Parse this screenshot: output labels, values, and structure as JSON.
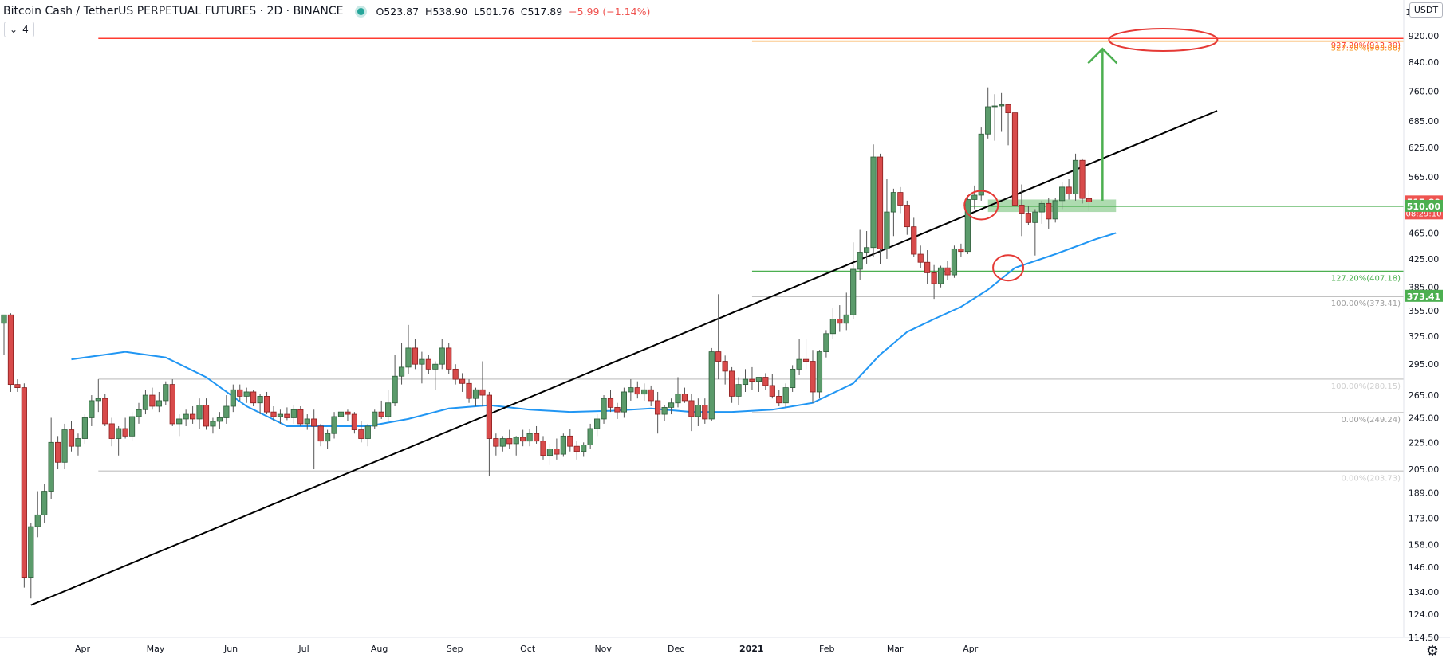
{
  "header": {
    "symbol": "Bitcoin Cash / TetherUS PERPETUAL FUTURES · 2D · BINANCE",
    "open": "O523.87",
    "high": "H538.90",
    "low": "L501.76",
    "close": "C517.89",
    "change": "−5.99 (−1.14%)",
    "ma_period": "4"
  },
  "currency": "USDT",
  "colors": {
    "up": "#26a69a",
    "up_fill": "#5b9b6b",
    "down": "#ef5350",
    "down_fill": "#d84b4b",
    "ma": "#2196f3",
    "trendline": "#000000",
    "target_arrow": "#4caf50",
    "fib_red": "#ff3b30",
    "fib_orange": "#f7931a",
    "fib_green": "#4caf50",
    "fib_gray": "#9e9e9e"
  },
  "chart_data": {
    "type": "candlestick",
    "title": "Bitcoin Cash / TetherUS PERPETUAL FUTURES · 2D · BINANCE",
    "timeframe": "2D",
    "ylim": [
      114.5,
      1000
    ],
    "y_scale": "log",
    "y_ticks": [
      "1000.00",
      "920.00",
      "840.00",
      "760.00",
      "685.00",
      "625.00",
      "565.00",
      "510.00",
      "465.00",
      "425.00",
      "385.00",
      "355.00",
      "325.00",
      "295.00",
      "265.00",
      "245.00",
      "225.00",
      "205.00",
      "189.00",
      "173.00",
      "158.00",
      "146.00",
      "134.00",
      "124.00",
      "114.50"
    ],
    "x_ticks": [
      {
        "label": "Apr",
        "day": 30
      },
      {
        "label": "May",
        "day": 60
      },
      {
        "label": "Jun",
        "day": 91
      },
      {
        "label": "Jul",
        "day": 121
      },
      {
        "label": "Aug",
        "day": 152
      },
      {
        "label": "Sep",
        "day": 183
      },
      {
        "label": "Oct",
        "day": 213
      },
      {
        "label": "Nov",
        "day": 244
      },
      {
        "label": "Dec",
        "day": 274
      },
      {
        "label": "2021",
        "day": 305
      },
      {
        "label": "Feb",
        "day": 336
      },
      {
        "label": "Mar",
        "day": 364
      },
      {
        "label": "Apr",
        "day": 395
      }
    ],
    "candles": [
      {
        "o": 340,
        "h": 350,
        "l": 305,
        "c": 350
      },
      {
        "o": 350,
        "h": 352,
        "l": 268,
        "c": 275
      },
      {
        "o": 275,
        "h": 280,
        "l": 268,
        "c": 272
      },
      {
        "o": 272,
        "h": 276,
        "l": 136,
        "c": 141
      },
      {
        "o": 141,
        "h": 170,
        "l": 131,
        "c": 168
      },
      {
        "o": 168,
        "h": 190,
        "l": 162,
        "c": 175
      },
      {
        "o": 175,
        "h": 195,
        "l": 170,
        "c": 190
      },
      {
        "o": 190,
        "h": 245,
        "l": 185,
        "c": 225
      },
      {
        "o": 225,
        "h": 230,
        "l": 205,
        "c": 210
      },
      {
        "o": 210,
        "h": 240,
        "l": 205,
        "c": 235
      },
      {
        "o": 235,
        "h": 242,
        "l": 218,
        "c": 222
      },
      {
        "o": 222,
        "h": 232,
        "l": 215,
        "c": 228
      },
      {
        "o": 228,
        "h": 248,
        "l": 224,
        "c": 245
      },
      {
        "o": 245,
        "h": 265,
        "l": 238,
        "c": 260
      },
      {
        "o": 260,
        "h": 280,
        "l": 250,
        "c": 262
      },
      {
        "o": 262,
        "h": 266,
        "l": 238,
        "c": 240
      },
      {
        "o": 240,
        "h": 245,
        "l": 222,
        "c": 228
      },
      {
        "o": 228,
        "h": 238,
        "l": 215,
        "c": 236
      },
      {
        "o": 236,
        "h": 245,
        "l": 228,
        "c": 230
      },
      {
        "o": 230,
        "h": 250,
        "l": 226,
        "c": 246
      },
      {
        "o": 246,
        "h": 258,
        "l": 240,
        "c": 252
      },
      {
        "o": 252,
        "h": 270,
        "l": 248,
        "c": 265
      },
      {
        "o": 265,
        "h": 272,
        "l": 252,
        "c": 255
      },
      {
        "o": 255,
        "h": 268,
        "l": 250,
        "c": 260
      },
      {
        "o": 260,
        "h": 278,
        "l": 256,
        "c": 275
      },
      {
        "o": 275,
        "h": 280,
        "l": 238,
        "c": 240
      },
      {
        "o": 240,
        "h": 248,
        "l": 230,
        "c": 244
      },
      {
        "o": 244,
        "h": 252,
        "l": 238,
        "c": 248
      },
      {
        "o": 248,
        "h": 255,
        "l": 240,
        "c": 244
      },
      {
        "o": 244,
        "h": 262,
        "l": 236,
        "c": 256
      },
      {
        "o": 256,
        "h": 262,
        "l": 235,
        "c": 238
      },
      {
        "o": 238,
        "h": 245,
        "l": 232,
        "c": 242
      },
      {
        "o": 242,
        "h": 250,
        "l": 236,
        "c": 245
      },
      {
        "o": 245,
        "h": 265,
        "l": 240,
        "c": 255
      },
      {
        "o": 255,
        "h": 275,
        "l": 250,
        "c": 270
      },
      {
        "o": 270,
        "h": 275,
        "l": 260,
        "c": 264
      },
      {
        "o": 264,
        "h": 272,
        "l": 258,
        "c": 268
      },
      {
        "o": 268,
        "h": 270,
        "l": 255,
        "c": 258
      },
      {
        "o": 258,
        "h": 266,
        "l": 248,
        "c": 264
      },
      {
        "o": 264,
        "h": 268,
        "l": 248,
        "c": 250
      },
      {
        "o": 250,
        "h": 255,
        "l": 242,
        "c": 246
      },
      {
        "o": 246,
        "h": 252,
        "l": 240,
        "c": 248
      },
      {
        "o": 248,
        "h": 254,
        "l": 243,
        "c": 245
      },
      {
        "o": 245,
        "h": 256,
        "l": 240,
        "c": 252
      },
      {
        "o": 252,
        "h": 255,
        "l": 238,
        "c": 240
      },
      {
        "o": 240,
        "h": 248,
        "l": 235,
        "c": 244
      },
      {
        "o": 244,
        "h": 252,
        "l": 205,
        "c": 238
      },
      {
        "o": 238,
        "h": 240,
        "l": 222,
        "c": 226
      },
      {
        "o": 226,
        "h": 235,
        "l": 220,
        "c": 232
      },
      {
        "o": 232,
        "h": 250,
        "l": 228,
        "c": 246
      },
      {
        "o": 246,
        "h": 255,
        "l": 240,
        "c": 250
      },
      {
        "o": 250,
        "h": 252,
        "l": 242,
        "c": 248
      },
      {
        "o": 248,
        "h": 250,
        "l": 232,
        "c": 235
      },
      {
        "o": 235,
        "h": 242,
        "l": 225,
        "c": 228
      },
      {
        "o": 228,
        "h": 240,
        "l": 222,
        "c": 238
      },
      {
        "o": 238,
        "h": 252,
        "l": 236,
        "c": 250
      },
      {
        "o": 250,
        "h": 260,
        "l": 244,
        "c": 246
      },
      {
        "o": 246,
        "h": 270,
        "l": 242,
        "c": 258
      },
      {
        "o": 258,
        "h": 305,
        "l": 255,
        "c": 283
      },
      {
        "o": 283,
        "h": 318,
        "l": 275,
        "c": 292
      },
      {
        "o": 292,
        "h": 338,
        "l": 285,
        "c": 312
      },
      {
        "o": 312,
        "h": 322,
        "l": 290,
        "c": 295
      },
      {
        "o": 295,
        "h": 308,
        "l": 276,
        "c": 300
      },
      {
        "o": 300,
        "h": 305,
        "l": 285,
        "c": 290
      },
      {
        "o": 290,
        "h": 298,
        "l": 270,
        "c": 295
      },
      {
        "o": 295,
        "h": 322,
        "l": 290,
        "c": 312
      },
      {
        "o": 312,
        "h": 318,
        "l": 285,
        "c": 290
      },
      {
        "o": 290,
        "h": 295,
        "l": 275,
        "c": 280
      },
      {
        "o": 280,
        "h": 286,
        "l": 268,
        "c": 276
      },
      {
        "o": 276,
        "h": 280,
        "l": 258,
        "c": 262
      },
      {
        "o": 262,
        "h": 272,
        "l": 255,
        "c": 270
      },
      {
        "o": 270,
        "h": 298,
        "l": 255,
        "c": 265
      },
      {
        "o": 265,
        "h": 268,
        "l": 200,
        "c": 228
      },
      {
        "o": 228,
        "h": 232,
        "l": 215,
        "c": 222
      },
      {
        "o": 222,
        "h": 230,
        "l": 218,
        "c": 228
      },
      {
        "o": 228,
        "h": 235,
        "l": 220,
        "c": 224
      },
      {
        "o": 224,
        "h": 230,
        "l": 215,
        "c": 229
      },
      {
        "o": 229,
        "h": 235,
        "l": 222,
        "c": 226
      },
      {
        "o": 226,
        "h": 236,
        "l": 222,
        "c": 232
      },
      {
        "o": 232,
        "h": 238,
        "l": 224,
        "c": 226
      },
      {
        "o": 226,
        "h": 230,
        "l": 212,
        "c": 215
      },
      {
        "o": 215,
        "h": 224,
        "l": 208,
        "c": 220
      },
      {
        "o": 220,
        "h": 228,
        "l": 212,
        "c": 216
      },
      {
        "o": 216,
        "h": 232,
        "l": 214,
        "c": 230
      },
      {
        "o": 230,
        "h": 236,
        "l": 218,
        "c": 222
      },
      {
        "o": 222,
        "h": 226,
        "l": 212,
        "c": 218
      },
      {
        "o": 218,
        "h": 225,
        "l": 214,
        "c": 223
      },
      {
        "o": 223,
        "h": 240,
        "l": 220,
        "c": 236
      },
      {
        "o": 236,
        "h": 248,
        "l": 230,
        "c": 244
      },
      {
        "o": 244,
        "h": 265,
        "l": 240,
        "c": 262
      },
      {
        "o": 262,
        "h": 270,
        "l": 250,
        "c": 254
      },
      {
        "o": 254,
        "h": 258,
        "l": 244,
        "c": 250
      },
      {
        "o": 250,
        "h": 272,
        "l": 245,
        "c": 268
      },
      {
        "o": 268,
        "h": 280,
        "l": 260,
        "c": 272
      },
      {
        "o": 272,
        "h": 278,
        "l": 262,
        "c": 266
      },
      {
        "o": 266,
        "h": 276,
        "l": 260,
        "c": 270
      },
      {
        "o": 270,
        "h": 274,
        "l": 255,
        "c": 260
      },
      {
        "o": 260,
        "h": 268,
        "l": 232,
        "c": 248
      },
      {
        "o": 248,
        "h": 256,
        "l": 242,
        "c": 254
      },
      {
        "o": 254,
        "h": 262,
        "l": 248,
        "c": 258
      },
      {
        "o": 258,
        "h": 282,
        "l": 254,
        "c": 266
      },
      {
        "o": 266,
        "h": 272,
        "l": 258,
        "c": 260
      },
      {
        "o": 260,
        "h": 266,
        "l": 234,
        "c": 246
      },
      {
        "o": 246,
        "h": 262,
        "l": 238,
        "c": 256
      },
      {
        "o": 256,
        "h": 262,
        "l": 240,
        "c": 244
      },
      {
        "o": 244,
        "h": 312,
        "l": 242,
        "c": 308
      },
      {
        "o": 308,
        "h": 376,
        "l": 280,
        "c": 298
      },
      {
        "o": 298,
        "h": 304,
        "l": 275,
        "c": 288
      },
      {
        "o": 288,
        "h": 292,
        "l": 258,
        "c": 264
      },
      {
        "o": 264,
        "h": 282,
        "l": 256,
        "c": 275
      },
      {
        "o": 275,
        "h": 290,
        "l": 268,
        "c": 280
      },
      {
        "o": 280,
        "h": 292,
        "l": 270,
        "c": 278
      },
      {
        "o": 278,
        "h": 282,
        "l": 268,
        "c": 282
      },
      {
        "o": 282,
        "h": 286,
        "l": 270,
        "c": 274
      },
      {
        "o": 274,
        "h": 285,
        "l": 262,
        "c": 264
      },
      {
        "o": 264,
        "h": 270,
        "l": 255,
        "c": 258
      },
      {
        "o": 258,
        "h": 276,
        "l": 254,
        "c": 272
      },
      {
        "o": 272,
        "h": 294,
        "l": 268,
        "c": 290
      },
      {
        "o": 290,
        "h": 322,
        "l": 284,
        "c": 300
      },
      {
        "o": 300,
        "h": 322,
        "l": 290,
        "c": 298
      },
      {
        "o": 298,
        "h": 310,
        "l": 258,
        "c": 268
      },
      {
        "o": 268,
        "h": 310,
        "l": 262,
        "c": 308
      },
      {
        "o": 308,
        "h": 332,
        "l": 302,
        "c": 328
      },
      {
        "o": 328,
        "h": 358,
        "l": 322,
        "c": 345
      },
      {
        "o": 345,
        "h": 362,
        "l": 330,
        "c": 340
      },
      {
        "o": 340,
        "h": 378,
        "l": 332,
        "c": 350
      },
      {
        "o": 350,
        "h": 450,
        "l": 345,
        "c": 410
      },
      {
        "o": 410,
        "h": 470,
        "l": 395,
        "c": 435
      },
      {
        "o": 435,
        "h": 468,
        "l": 418,
        "c": 442
      },
      {
        "o": 442,
        "h": 632,
        "l": 428,
        "c": 605
      },
      {
        "o": 605,
        "h": 612,
        "l": 418,
        "c": 440
      },
      {
        "o": 440,
        "h": 560,
        "l": 425,
        "c": 500
      },
      {
        "o": 500,
        "h": 542,
        "l": 460,
        "c": 535
      },
      {
        "o": 535,
        "h": 545,
        "l": 498,
        "c": 512
      },
      {
        "o": 512,
        "h": 520,
        "l": 462,
        "c": 475
      },
      {
        "o": 475,
        "h": 490,
        "l": 428,
        "c": 432
      },
      {
        "o": 432,
        "h": 445,
        "l": 412,
        "c": 420
      },
      {
        "o": 420,
        "h": 438,
        "l": 390,
        "c": 405
      },
      {
        "o": 405,
        "h": 416,
        "l": 370,
        "c": 390
      },
      {
        "o": 390,
        "h": 415,
        "l": 385,
        "c": 412
      },
      {
        "o": 412,
        "h": 422,
        "l": 395,
        "c": 402
      },
      {
        "o": 402,
        "h": 445,
        "l": 398,
        "c": 440
      },
      {
        "o": 440,
        "h": 448,
        "l": 428,
        "c": 436
      },
      {
        "o": 436,
        "h": 530,
        "l": 432,
        "c": 522
      },
      {
        "o": 522,
        "h": 548,
        "l": 505,
        "c": 530
      },
      {
        "o": 530,
        "h": 670,
        "l": 520,
        "c": 655
      },
      {
        "o": 655,
        "h": 770,
        "l": 645,
        "c": 720
      },
      {
        "o": 720,
        "h": 752,
        "l": 640,
        "c": 722
      },
      {
        "o": 722,
        "h": 755,
        "l": 660,
        "c": 725
      },
      {
        "o": 725,
        "h": 728,
        "l": 630,
        "c": 705
      },
      {
        "o": 705,
        "h": 710,
        "l": 425,
        "c": 512
      },
      {
        "o": 512,
        "h": 550,
        "l": 460,
        "c": 498
      },
      {
        "o": 498,
        "h": 510,
        "l": 478,
        "c": 482
      },
      {
        "o": 482,
        "h": 505,
        "l": 430,
        "c": 500
      },
      {
        "o": 500,
        "h": 520,
        "l": 480,
        "c": 515
      },
      {
        "o": 515,
        "h": 525,
        "l": 472,
        "c": 488
      },
      {
        "o": 488,
        "h": 525,
        "l": 482,
        "c": 520
      },
      {
        "o": 520,
        "h": 555,
        "l": 505,
        "c": 545
      },
      {
        "o": 545,
        "h": 560,
        "l": 522,
        "c": 532
      },
      {
        "o": 532,
        "h": 612,
        "l": 520,
        "c": 598
      },
      {
        "o": 598,
        "h": 602,
        "l": 515,
        "c": 524
      },
      {
        "o": 523.87,
        "h": 538.9,
        "l": 501.76,
        "c": 517.89
      }
    ],
    "moving_average": [
      {
        "i": 10,
        "v": 300
      },
      {
        "i": 18,
        "v": 308
      },
      {
        "i": 24,
        "v": 302
      },
      {
        "i": 30,
        "v": 282
      },
      {
        "i": 36,
        "v": 255
      },
      {
        "i": 42,
        "v": 238
      },
      {
        "i": 48,
        "v": 238
      },
      {
        "i": 54,
        "v": 238
      },
      {
        "i": 60,
        "v": 244
      },
      {
        "i": 66,
        "v": 253
      },
      {
        "i": 72,
        "v": 256
      },
      {
        "i": 78,
        "v": 252
      },
      {
        "i": 84,
        "v": 250
      },
      {
        "i": 90,
        "v": 251
      },
      {
        "i": 96,
        "v": 253
      },
      {
        "i": 102,
        "v": 250
      },
      {
        "i": 108,
        "v": 250
      },
      {
        "i": 114,
        "v": 252
      },
      {
        "i": 120,
        "v": 258
      },
      {
        "i": 126,
        "v": 276
      },
      {
        "i": 130,
        "v": 305
      },
      {
        "i": 134,
        "v": 330
      },
      {
        "i": 138,
        "v": 345
      },
      {
        "i": 142,
        "v": 360
      },
      {
        "i": 146,
        "v": 382
      },
      {
        "i": 150,
        "v": 412
      },
      {
        "i": 156,
        "v": 432
      },
      {
        "i": 162,
        "v": 455
      },
      {
        "i": 165,
        "v": 465
      }
    ],
    "trendline": {
      "from": {
        "i": 4,
        "v": 128
      },
      "to": {
        "i": 180,
        "v": 710
      }
    },
    "horizontal_levels": [
      {
        "label": "927.20%(912.30)",
        "value": 912.3,
        "color": "#ff3b30",
        "from_i": 14
      },
      {
        "label": "527.20%(903.86)",
        "value": 903.86,
        "color": "#f7931a",
        "from_i": 111
      },
      {
        "label": "127.20%(407.18)",
        "value": 407.18,
        "color": "#4caf50",
        "from_i": 111
      },
      {
        "label": "100.00%(373.41)",
        "value": 373.41,
        "color": "#9e9e9e",
        "from_i": 111
      },
      {
        "label": "100.00%(280.15)",
        "value": 280.15,
        "color": "#cfcfcf",
        "from_i": 14
      },
      {
        "label": "0.00%(249.24)",
        "value": 249.24,
        "color": "#9e9e9e",
        "from_i": 111
      },
      {
        "label": "0.00%(203.73)",
        "value": 203.73,
        "color": "#cfcfcf",
        "from_i": 14
      }
    ],
    "support_line": {
      "value": 510.0,
      "from_i": 143
    },
    "support_zone": {
      "low": 500,
      "high": 522,
      "from_i": 146,
      "to_i": 165
    },
    "target_arrow": {
      "i": 163,
      "from": 520,
      "to": 880
    },
    "circles": [
      {
        "name": "fib-target-circle",
        "i": 172,
        "v": 908
      },
      {
        "name": "retest-circle",
        "i": 145,
        "v": 512
      },
      {
        "name": "ma-touch-circle",
        "i": 149,
        "v": 412
      }
    ],
    "price_labels": [
      {
        "text": "517.89",
        "sub": "08:29:10",
        "value": 517.89,
        "color": "#ef5350"
      },
      {
        "text": "510.00",
        "value": 510.0,
        "color": "#4caf50"
      },
      {
        "text": "373.41",
        "value": 373.41,
        "color": "#4caf50"
      }
    ]
  }
}
